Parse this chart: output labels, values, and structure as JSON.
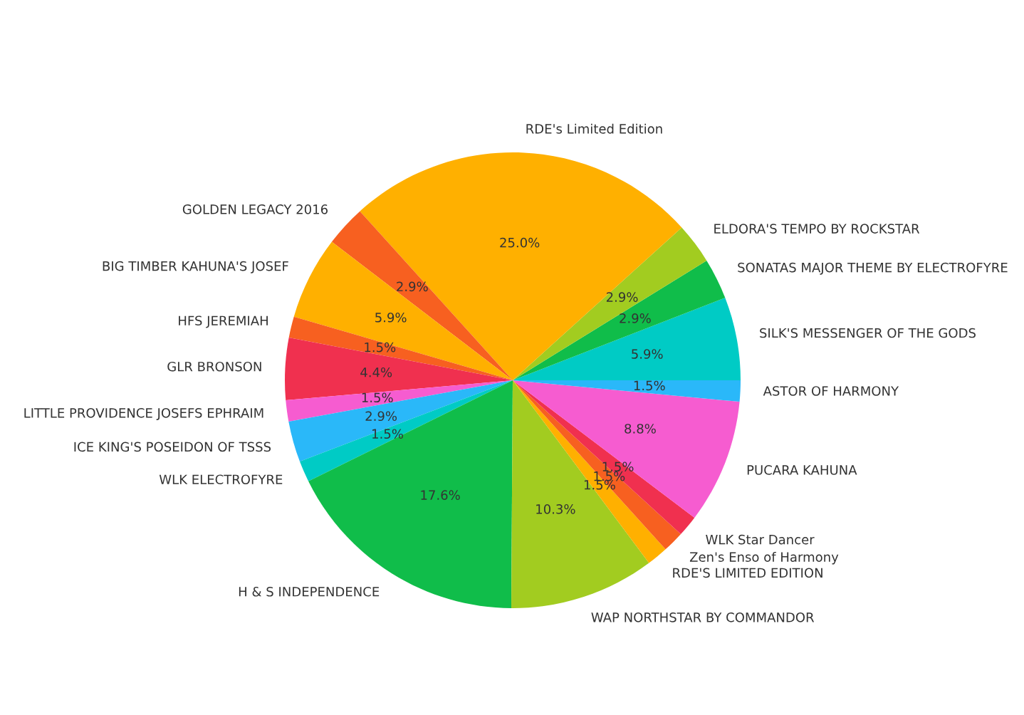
{
  "chart_data": {
    "type": "pie",
    "categories": [
      "SILK'S MESSENGER OF THE GODS",
      "SONATAS MAJOR THEME BY ELECTROFYRE",
      "ELDORA'S TEMPO BY ROCKSTAR",
      "RDE's Limited Edition",
      "GOLDEN LEGACY 2016",
      "BIG TIMBER KAHUNA'S JOSEF",
      "HFS JEREMIAH",
      "GLR BRONSON",
      "LITTLE PROVIDENCE JOSEFS EPHRAIM",
      "ICE KING'S POSEIDON OF TSSS",
      "WLK ELECTROFYRE",
      "H & S INDEPENDENCE",
      "WAP NORTHSTAR BY COMMANDOR",
      "RDE'S LIMITED EDITION",
      "Zen's Enso of Harmony",
      "WLK Star Dancer",
      "PUCARA KAHUNA",
      "ASTOR OF HARMONY"
    ],
    "values": [
      5.9,
      2.9,
      2.9,
      25.0,
      2.9,
      5.9,
      1.5,
      4.4,
      1.5,
      2.9,
      1.5,
      17.6,
      10.3,
      1.5,
      1.5,
      1.5,
      8.8,
      1.5
    ],
    "value_labels": [
      "5.9%",
      "2.9%",
      "2.9%",
      "25.0%",
      "2.9%",
      "5.9%",
      "1.5%",
      "4.4%",
      "1.5%",
      "2.9%",
      "1.5%",
      "17.6%",
      "10.3%",
      "1.5%",
      "1.5%",
      "1.5%",
      "8.8%",
      "1.5%"
    ],
    "colors": [
      "#00cbc5",
      "#10bd4a",
      "#a2cc20",
      "#ffb000",
      "#f76020",
      "#ffb000",
      "#f76020",
      "#f0304f",
      "#f65cd0",
      "#2ab8f9",
      "#00cbc5",
      "#10bd4a",
      "#a2cc20",
      "#ffb000",
      "#f76020",
      "#f0304f",
      "#f65cd0",
      "#2ab8f9"
    ]
  }
}
